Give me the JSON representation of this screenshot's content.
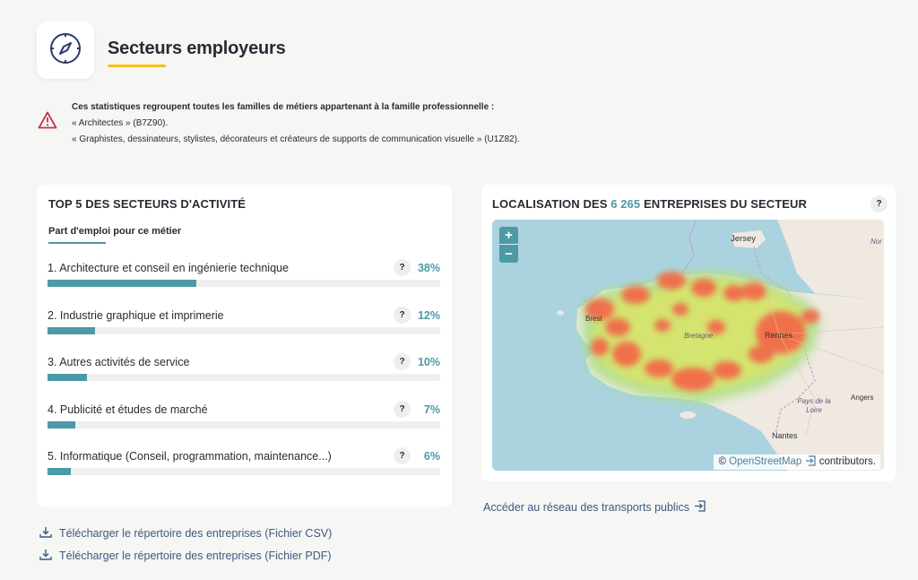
{
  "header": {
    "icon": "compass-icon",
    "title": "Secteurs employeurs"
  },
  "notice": {
    "icon": "warning-icon",
    "line1": "Ces statistiques regroupent toutes les familles de métiers appartenant à la famille professionnelle :",
    "line2": "« Architectes » (B7Z90).",
    "line3": "« Graphistes, dessinateurs, stylistes, décorateurs et créateurs de supports de communication visuelle » (U1Z82)."
  },
  "top_sectors": {
    "title": "TOP 5 DES SECTEURS D'ACTIVITÉ",
    "tab": "Part d'emploi pour ce métier",
    "help": "?",
    "items": [
      {
        "label": "1. Architecture et conseil en ingénierie technique",
        "pct_text": "38%",
        "value": 38
      },
      {
        "label": "2. Industrie graphique et imprimerie",
        "pct_text": "12%",
        "value": 12
      },
      {
        "label": "3. Autres activités de service",
        "pct_text": "10%",
        "value": 10
      },
      {
        "label": "4. Publicité et études de marché",
        "pct_text": "7%",
        "value": 7
      },
      {
        "label": "5. Informatique (Conseil, programmation, maintenance...)",
        "pct_text": "6%",
        "value": 6
      }
    ]
  },
  "map_card": {
    "title_prefix": "LOCALISATION DES ",
    "count": "6 265",
    "title_suffix": " ENTREPRISES DU SECTEUR",
    "help": "?",
    "zoom_in": "+",
    "zoom_out": "−",
    "labels": {
      "jersey": "Jersey",
      "brest": "Brest",
      "bretagne": "Bretagne",
      "rennes": "Rennes",
      "pays_de_la_loire": "Pays de la Loire",
      "angers": "Angers",
      "nantes": "Nantes",
      "nor": "Nor"
    },
    "attribution_prefix": "© ",
    "attribution_link": "OpenStreetMap",
    "attribution_suffix": " contributors."
  },
  "links": {
    "transport": "Accéder au réseau des transports publics",
    "csv": "Télécharger le répertoire des entreprises (Fichier CSV)",
    "pdf": "Télécharger le répertoire des entreprises (Fichier PDF)"
  },
  "colors": {
    "accent": "#4c9aa5",
    "title_underline": "#f3c213",
    "warning": "#c0344d",
    "icon_navy": "#2a3a6a"
  }
}
